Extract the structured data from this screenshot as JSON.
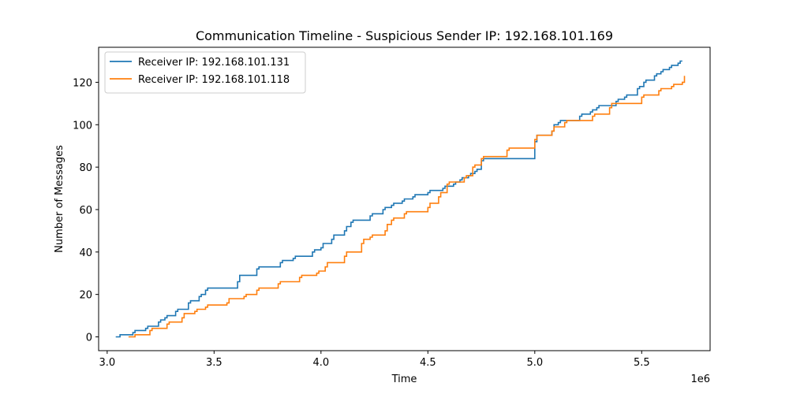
{
  "chart_data": {
    "type": "line",
    "step": true,
    "title": "Communication Timeline - Suspicious Sender IP: 192.168.101.169",
    "xlabel": "Time",
    "ylabel": "Number of Messages",
    "x_offset_label": "1e6",
    "xlim": [
      2.96,
      5.82
    ],
    "ylim": [
      -6.5,
      136.5
    ],
    "x_ticks": [
      3.0,
      3.5,
      4.0,
      4.5,
      5.0,
      5.5
    ],
    "x_tick_labels": [
      "3.0",
      "3.5",
      "4.0",
      "4.5",
      "5.0",
      "5.5"
    ],
    "y_ticks": [
      0,
      20,
      40,
      60,
      80,
      100,
      120
    ],
    "y_tick_labels": [
      "0",
      "20",
      "40",
      "60",
      "80",
      "100",
      "120"
    ],
    "grid": false,
    "legend_position": "top-left",
    "series": [
      {
        "name": "Receiver IP: 192.168.101.131",
        "color": "#1f77b4",
        "x": [
          3.04,
          3.06,
          3.12,
          3.13,
          3.18,
          3.19,
          3.24,
          3.25,
          3.27,
          3.28,
          3.32,
          3.33,
          3.38,
          3.39,
          3.43,
          3.44,
          3.46,
          3.47,
          3.61,
          3.62,
          3.7,
          3.71,
          3.81,
          3.82,
          3.87,
          3.88,
          3.96,
          3.97,
          4.0,
          4.01,
          4.05,
          4.06,
          4.11,
          4.12,
          4.14,
          4.15,
          4.23,
          4.24,
          4.29,
          4.3,
          4.33,
          4.34,
          4.38,
          4.39,
          4.43,
          4.44,
          4.5,
          4.51,
          4.57,
          4.58,
          4.62,
          4.63,
          4.65,
          4.66,
          4.69,
          4.7,
          4.72,
          4.73,
          4.75,
          4.76,
          5.0,
          5.01,
          5.08,
          5.09,
          5.11,
          5.12,
          5.21,
          5.22,
          5.26,
          5.27,
          5.29,
          5.3,
          5.38,
          5.39,
          5.42,
          5.43,
          5.48,
          5.49,
          5.51,
          5.52,
          5.56,
          5.57,
          5.59,
          5.6,
          5.63,
          5.64,
          5.67,
          5.68,
          5.69
        ],
        "values": [
          0,
          1,
          2,
          3,
          4,
          5,
          7,
          8,
          9,
          10,
          12,
          13,
          16,
          17,
          19,
          20,
          22,
          23,
          26,
          29,
          32,
          33,
          35,
          36,
          37,
          38,
          40,
          41,
          42,
          44,
          46,
          48,
          50,
          52,
          54,
          55,
          57,
          58,
          60,
          61,
          62,
          63,
          64,
          65,
          66,
          67,
          68,
          69,
          70,
          71,
          72,
          73,
          74,
          75,
          76,
          77,
          78,
          79,
          83,
          84,
          92,
          95,
          97,
          100,
          101,
          102,
          104,
          105,
          106,
          107,
          108,
          109,
          111,
          112,
          113,
          114,
          117,
          118,
          120,
          121,
          123,
          124,
          125,
          126,
          127,
          128,
          129,
          130,
          130
        ]
      },
      {
        "name": "Receiver IP: 192.168.101.118",
        "color": "#ff7f0e",
        "x": [
          3.1,
          3.13,
          3.2,
          3.21,
          3.28,
          3.29,
          3.35,
          3.36,
          3.41,
          3.42,
          3.46,
          3.47,
          3.56,
          3.57,
          3.64,
          3.65,
          3.7,
          3.71,
          3.8,
          3.81,
          3.9,
          3.91,
          3.98,
          3.99,
          4.02,
          4.03,
          4.11,
          4.12,
          4.19,
          4.2,
          4.23,
          4.24,
          4.3,
          4.31,
          4.33,
          4.34,
          4.39,
          4.4,
          4.5,
          4.51,
          4.55,
          4.56,
          4.59,
          4.6,
          4.67,
          4.68,
          4.71,
          4.72,
          4.75,
          4.76,
          4.87,
          4.88,
          5.0,
          5.01,
          5.08,
          5.09,
          5.14,
          5.15,
          5.27,
          5.28,
          5.35,
          5.36,
          5.5,
          5.51,
          5.58,
          5.59,
          5.64,
          5.65,
          5.69,
          5.7
        ],
        "values": [
          0,
          1,
          3,
          4,
          6,
          7,
          9,
          11,
          12,
          13,
          14,
          15,
          16,
          18,
          19,
          20,
          22,
          23,
          25,
          26,
          28,
          29,
          30,
          31,
          33,
          35,
          38,
          40,
          44,
          46,
          47,
          48,
          50,
          53,
          55,
          56,
          58,
          59,
          61,
          63,
          66,
          68,
          72,
          73,
          75,
          76,
          80,
          81,
          84,
          85,
          88,
          89,
          93,
          95,
          97,
          99,
          101,
          102,
          104,
          105,
          108,
          110,
          113,
          114,
          116,
          117,
          118,
          119,
          120,
          123
        ]
      }
    ]
  }
}
